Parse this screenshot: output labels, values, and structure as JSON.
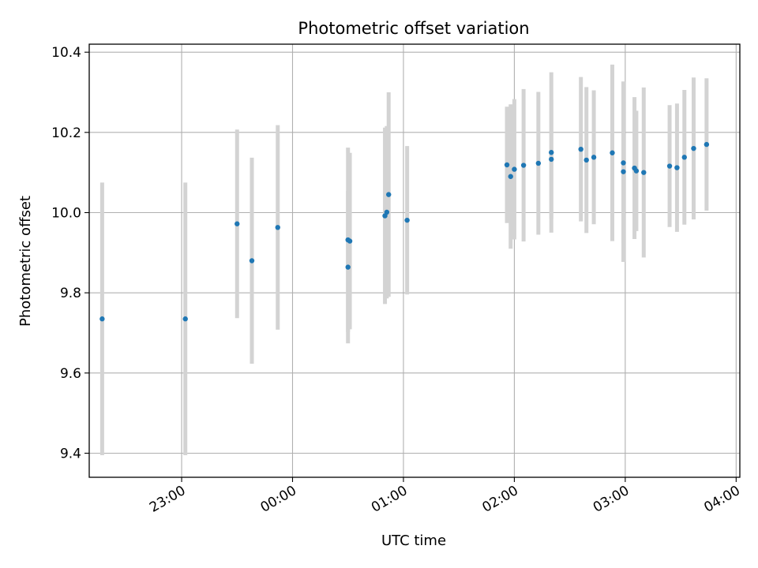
{
  "chart_data": {
    "type": "scatter",
    "title": "Photometric offset variation",
    "xlabel": "UTC time",
    "ylabel": "Photometric offset",
    "x_unit": "UTC clock time (hours)",
    "xlim": [
      "22:10",
      "04:02"
    ],
    "ylim": [
      9.34,
      10.42
    ],
    "grid": true,
    "x_ticks": [
      {
        "label": "23:00",
        "value": "23:00"
      },
      {
        "label": "00:00",
        "value": "00:00"
      },
      {
        "label": "01:00",
        "value": "01:00"
      },
      {
        "label": "02:00",
        "value": "02:00"
      },
      {
        "label": "03:00",
        "value": "03:00"
      },
      {
        "label": "04:00",
        "value": "04:00"
      }
    ],
    "y_ticks": [
      {
        "label": "9.4",
        "value": 9.4
      },
      {
        "label": "9.6",
        "value": 9.6
      },
      {
        "label": "9.8",
        "value": 9.8
      },
      {
        "label": "10.0",
        "value": 10.0
      },
      {
        "label": "10.2",
        "value": 10.2
      },
      {
        "label": "10.4",
        "value": 10.4
      }
    ],
    "colors": {
      "points": "#1f77b4",
      "errorbars": "#d3d3d3",
      "grid": "#b0b0b0"
    },
    "points": [
      {
        "time": "22:17",
        "y": 9.735,
        "err": 0.34
      },
      {
        "time": "23:02",
        "y": 9.735,
        "err": 0.34
      },
      {
        "time": "23:30",
        "y": 9.972,
        "err": 0.235
      },
      {
        "time": "23:38",
        "y": 9.88,
        "err": 0.257
      },
      {
        "time": "23:52",
        "y": 9.963,
        "err": 0.255
      },
      {
        "time": "00:30",
        "y": 9.864,
        "err": 0.19
      },
      {
        "time": "00:30",
        "y": 9.932,
        "err": 0.23
      },
      {
        "time": "00:31",
        "y": 9.929,
        "err": 0.22
      },
      {
        "time": "00:50",
        "y": 9.992,
        "err": 0.22
      },
      {
        "time": "00:51",
        "y": 10.001,
        "err": 0.215
      },
      {
        "time": "00:52",
        "y": 10.045,
        "err": 0.255
      },
      {
        "time": "01:02",
        "y": 9.981,
        "err": 0.185
      },
      {
        "time": "01:56",
        "y": 10.119,
        "err": 0.145
      },
      {
        "time": "01:58",
        "y": 10.09,
        "err": 0.18
      },
      {
        "time": "02:00",
        "y": 10.108,
        "err": 0.175
      },
      {
        "time": "02:05",
        "y": 10.118,
        "err": 0.19
      },
      {
        "time": "02:13",
        "y": 10.123,
        "err": 0.178
      },
      {
        "time": "02:20",
        "y": 10.15,
        "err": 0.2
      },
      {
        "time": "02:20",
        "y": 10.133,
        "err": 0.148
      },
      {
        "time": "02:36",
        "y": 10.158,
        "err": 0.18
      },
      {
        "time": "02:39",
        "y": 10.131,
        "err": 0.182
      },
      {
        "time": "02:43",
        "y": 10.138,
        "err": 0.167
      },
      {
        "time": "02:53",
        "y": 10.149,
        "err": 0.22
      },
      {
        "time": "02:59",
        "y": 10.124,
        "err": 0.2
      },
      {
        "time": "02:59",
        "y": 10.102,
        "err": 0.225
      },
      {
        "time": "03:05",
        "y": 10.111,
        "err": 0.177
      },
      {
        "time": "03:06",
        "y": 10.104,
        "err": 0.15
      },
      {
        "time": "03:10",
        "y": 10.1,
        "err": 0.212
      },
      {
        "time": "03:24",
        "y": 10.116,
        "err": 0.152
      },
      {
        "time": "03:28",
        "y": 10.112,
        "err": 0.16
      },
      {
        "time": "03:32",
        "y": 10.138,
        "err": 0.168
      },
      {
        "time": "03:37",
        "y": 10.16,
        "err": 0.177
      },
      {
        "time": "03:44",
        "y": 10.17,
        "err": 0.165
      }
    ]
  }
}
